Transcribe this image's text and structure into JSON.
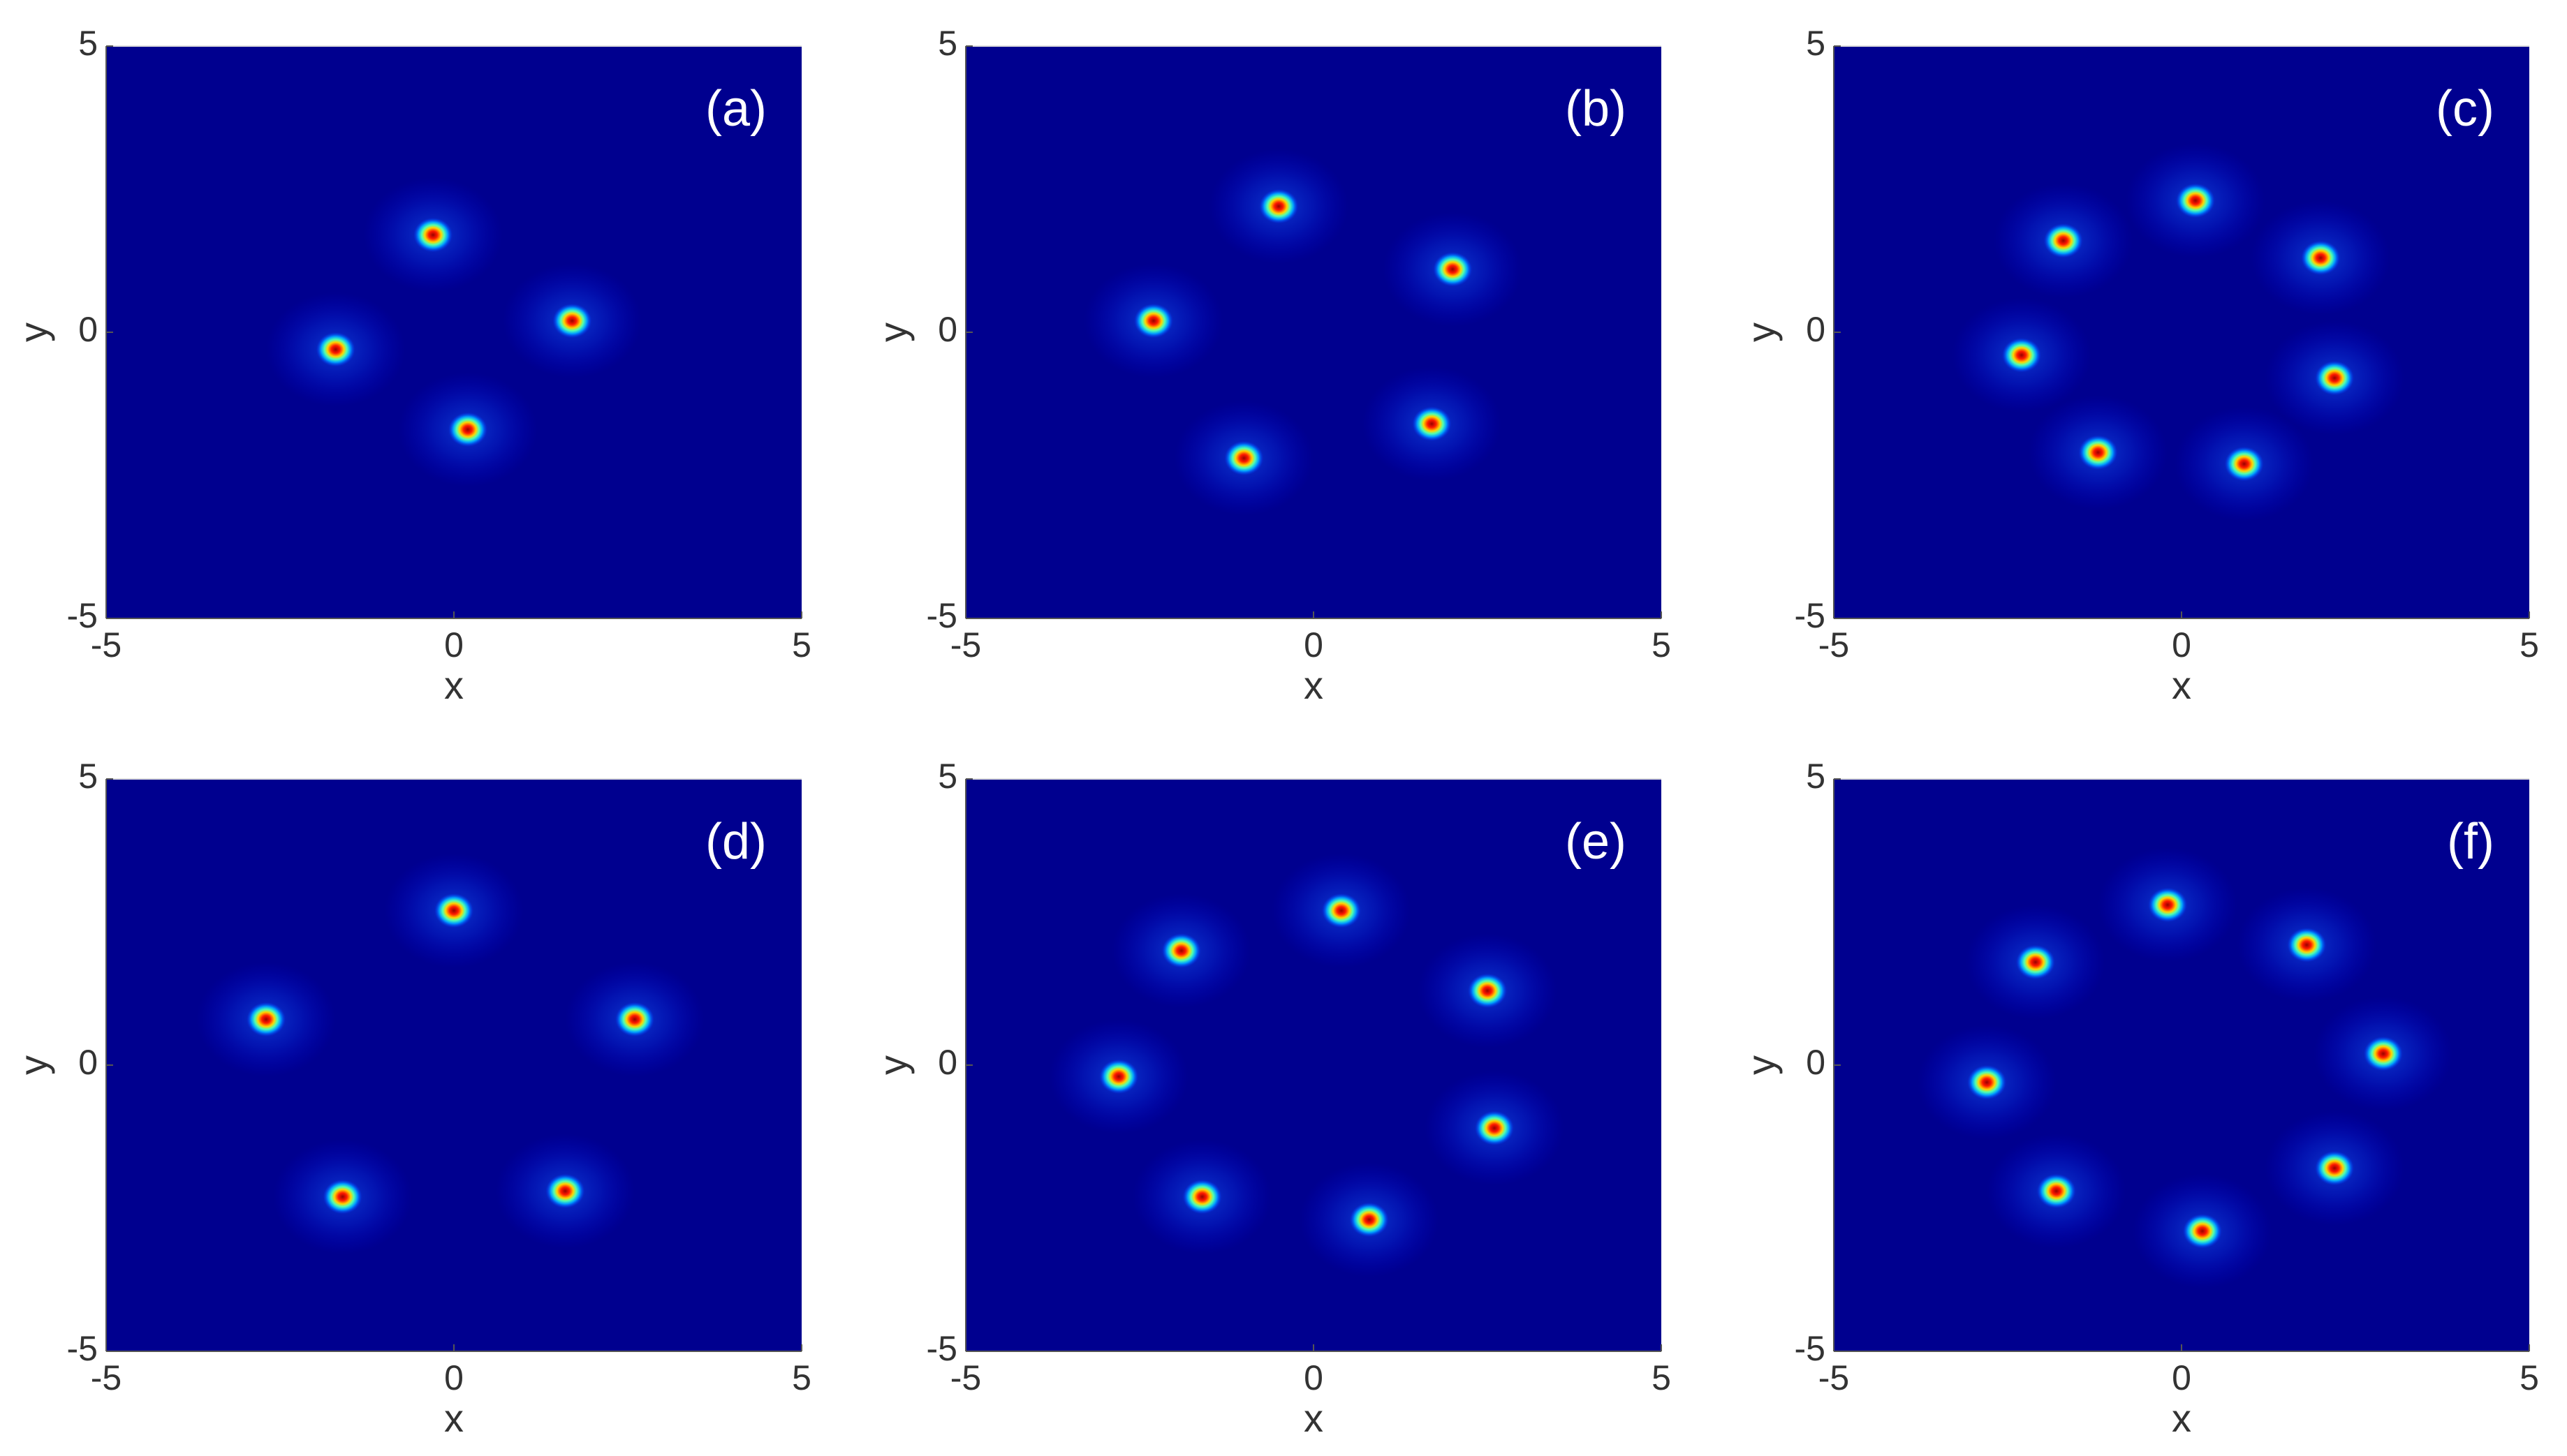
{
  "chart_data": [
    {
      "type": "density",
      "panel_label": "(a)",
      "x_label": "x",
      "y_label": "y",
      "xlim": [
        -5,
        5
      ],
      "ylim": [
        -5,
        5
      ],
      "xticks": [
        -5,
        0,
        5
      ],
      "yticks": [
        -5,
        0,
        5
      ],
      "color": "#00008f",
      "x": [
        -0.3,
        1.7,
        0.2,
        -1.7
      ],
      "y": [
        1.7,
        0.2,
        -1.7,
        -0.3
      ]
    },
    {
      "type": "density",
      "panel_label": "(b)",
      "x_label": "x",
      "y_label": "y",
      "xlim": [
        -5,
        5
      ],
      "ylim": [
        -5,
        5
      ],
      "xticks": [
        -5,
        0,
        5
      ],
      "yticks": [
        -5,
        0,
        5
      ],
      "color": "#00008f",
      "x": [
        -0.5,
        2.0,
        1.7,
        -1.0,
        -2.3
      ],
      "y": [
        2.2,
        1.1,
        -1.6,
        -2.2,
        0.2
      ]
    },
    {
      "type": "density",
      "panel_label": "(c)",
      "x_label": "x",
      "y_label": "y",
      "xlim": [
        -5,
        5
      ],
      "ylim": [
        -5,
        5
      ],
      "xticks": [
        -5,
        0,
        5
      ],
      "yticks": [
        -5,
        0,
        5
      ],
      "color": "#00008f",
      "x": [
        0.2,
        2.0,
        2.2,
        0.9,
        -1.2,
        -2.3,
        -1.7
      ],
      "y": [
        2.3,
        1.3,
        -0.8,
        -2.3,
        -2.1,
        -0.4,
        1.6
      ]
    },
    {
      "type": "density",
      "panel_label": "(d)",
      "x_label": "x",
      "y_label": "y",
      "xlim": [
        -5,
        5
      ],
      "ylim": [
        -5,
        5
      ],
      "xticks": [
        -5,
        0,
        5
      ],
      "yticks": [
        -5,
        0,
        5
      ],
      "color": "#00008f",
      "x": [
        0.0,
        2.6,
        1.6,
        -1.6,
        -2.7
      ],
      "y": [
        2.7,
        0.8,
        -2.2,
        -2.3,
        0.8
      ]
    },
    {
      "type": "density",
      "panel_label": "(e)",
      "x_label": "x",
      "y_label": "y",
      "xlim": [
        -5,
        5
      ],
      "ylim": [
        -5,
        5
      ],
      "xticks": [
        -5,
        0,
        5
      ],
      "yticks": [
        -5,
        0,
        5
      ],
      "color": "#00008f",
      "x": [
        0.4,
        2.5,
        2.6,
        0.8,
        -1.6,
        -2.8,
        -1.9
      ],
      "y": [
        2.7,
        1.3,
        -1.1,
        -2.7,
        -2.3,
        -0.2,
        2.0
      ]
    },
    {
      "type": "density",
      "panel_label": "(f)",
      "x_label": "x",
      "y_label": "y",
      "xlim": [
        -5,
        5
      ],
      "ylim": [
        -5,
        5
      ],
      "xticks": [
        -5,
        0,
        5
      ],
      "yticks": [
        -5,
        0,
        5
      ],
      "color": "#00008f",
      "x": [
        -0.2,
        1.8,
        2.9,
        2.2,
        0.3,
        -1.8,
        -2.8,
        -2.1
      ],
      "y": [
        2.8,
        2.1,
        0.2,
        -1.8,
        -2.9,
        -2.2,
        -0.3,
        1.8
      ]
    }
  ]
}
